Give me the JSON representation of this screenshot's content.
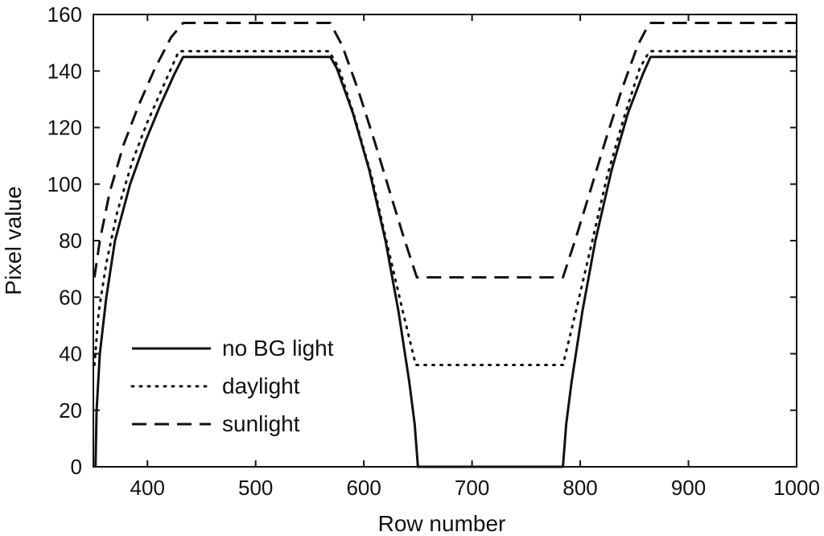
{
  "chart_data": {
    "type": "line",
    "title": "",
    "xlabel": "Row number",
    "ylabel": "Pixel value",
    "xlim": [
      350,
      1000
    ],
    "ylim": [
      0,
      160
    ],
    "xticks": [
      400,
      500,
      600,
      700,
      800,
      900,
      1000
    ],
    "yticks": [
      0,
      20,
      40,
      60,
      80,
      100,
      120,
      140,
      160
    ],
    "grid": false,
    "legend": "bottom-left",
    "series": [
      {
        "name": "no BG light",
        "style": "solid",
        "color": "#111111",
        "points": [
          [
            352,
            0
          ],
          [
            353,
            20
          ],
          [
            356,
            40
          ],
          [
            362,
            60
          ],
          [
            370,
            80
          ],
          [
            384,
            100
          ],
          [
            398,
            115
          ],
          [
            412,
            128
          ],
          [
            425,
            139
          ],
          [
            433,
            145
          ],
          [
            569,
            145
          ],
          [
            575,
            141
          ],
          [
            590,
            125
          ],
          [
            605,
            105
          ],
          [
            620,
            80
          ],
          [
            632,
            55
          ],
          [
            642,
            30
          ],
          [
            647,
            15
          ],
          [
            650,
            0
          ],
          [
            784,
            0
          ],
          [
            787,
            15
          ],
          [
            792,
            30
          ],
          [
            802,
            55
          ],
          [
            814,
            80
          ],
          [
            829,
            105
          ],
          [
            844,
            125
          ],
          [
            858,
            139
          ],
          [
            865,
            145
          ],
          [
            1000,
            145
          ]
        ]
      },
      {
        "name": "daylight",
        "style": "dotted",
        "color": "#111111",
        "points": [
          [
            351,
            36
          ],
          [
            355,
            55
          ],
          [
            362,
            72
          ],
          [
            372,
            90
          ],
          [
            386,
            108
          ],
          [
            400,
            122
          ],
          [
            415,
            135
          ],
          [
            429,
            147
          ],
          [
            568,
            147
          ],
          [
            577,
            141
          ],
          [
            592,
            123
          ],
          [
            607,
            103
          ],
          [
            622,
            78
          ],
          [
            636,
            55
          ],
          [
            648,
            36
          ],
          [
            784,
            36
          ],
          [
            796,
            55
          ],
          [
            810,
            78
          ],
          [
            825,
            103
          ],
          [
            840,
            123
          ],
          [
            855,
            141
          ],
          [
            864,
            147
          ],
          [
            1000,
            147
          ]
        ]
      },
      {
        "name": "sunlight",
        "style": "dashed",
        "color": "#111111",
        "points": [
          [
            351,
            67
          ],
          [
            356,
            80
          ],
          [
            365,
            97
          ],
          [
            378,
            114
          ],
          [
            392,
            128
          ],
          [
            407,
            141
          ],
          [
            422,
            152
          ],
          [
            433,
            157
          ],
          [
            569,
            157
          ],
          [
            580,
            149
          ],
          [
            595,
            133
          ],
          [
            610,
            115
          ],
          [
            625,
            96
          ],
          [
            637,
            81
          ],
          [
            649,
            67
          ],
          [
            784,
            67
          ],
          [
            796,
            81
          ],
          [
            808,
            96
          ],
          [
            823,
            115
          ],
          [
            838,
            133
          ],
          [
            853,
            149
          ],
          [
            864,
            157
          ],
          [
            1000,
            157
          ]
        ]
      }
    ]
  }
}
